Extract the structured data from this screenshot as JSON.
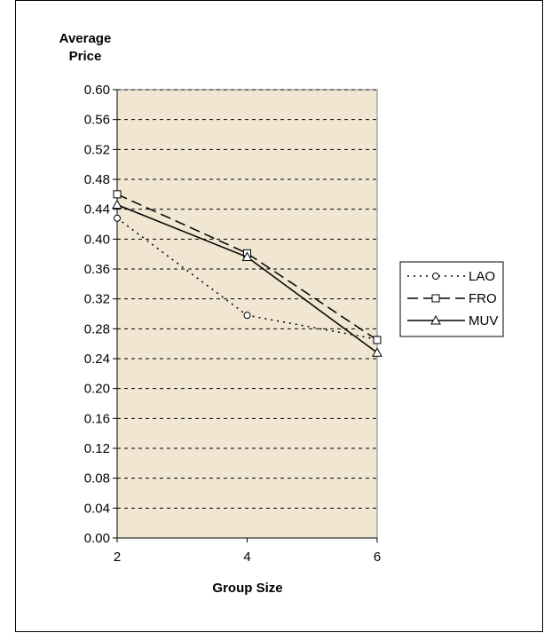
{
  "chart_data": {
    "type": "line",
    "title": "",
    "xlabel": "Group Size",
    "ylabel_lines": [
      "Average",
      "Price"
    ],
    "x": [
      2,
      4,
      6
    ],
    "x_ticks": [
      "2",
      "4",
      "6"
    ],
    "ylim": [
      0.0,
      0.6
    ],
    "y_ticks": [
      "0.00",
      "0.04",
      "0.08",
      "0.12",
      "0.16",
      "0.20",
      "0.24",
      "0.28",
      "0.32",
      "0.36",
      "0.40",
      "0.44",
      "0.48",
      "0.52",
      "0.56",
      "0.60"
    ],
    "grid": "horizontal dashed",
    "plot_background": "#f0e6d2",
    "legend_position": "right",
    "series": [
      {
        "name": "LAO",
        "marker": "circle",
        "line_style": "dotted",
        "values": [
          0.428,
          0.298,
          0.266
        ]
      },
      {
        "name": "FRO",
        "marker": "square",
        "line_style": "dashed",
        "values": [
          0.46,
          0.381,
          0.265
        ]
      },
      {
        "name": "MUV",
        "marker": "triangle",
        "line_style": "solid",
        "values": [
          0.446,
          0.376,
          0.248
        ]
      }
    ]
  }
}
